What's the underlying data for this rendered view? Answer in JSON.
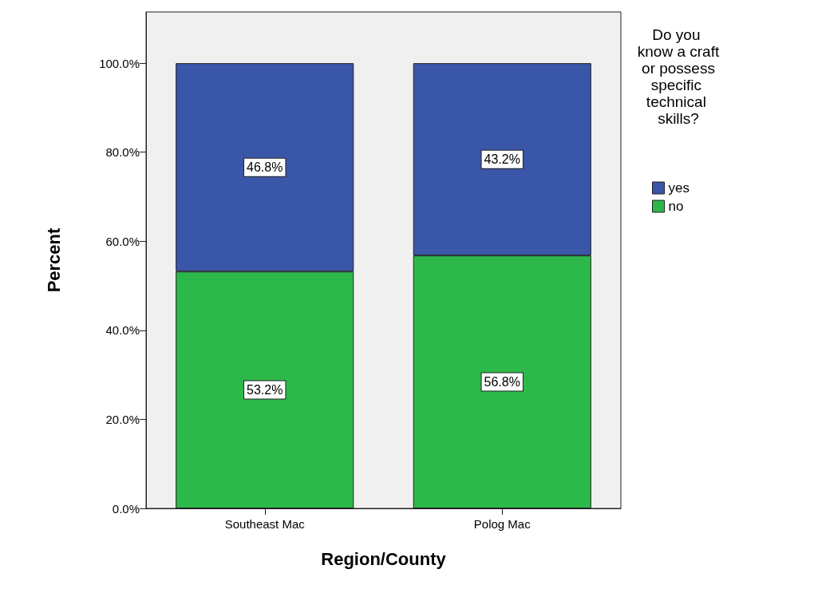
{
  "chart_data": {
    "type": "bar",
    "stacked": true,
    "xlabel": "Region/County",
    "ylabel": "Percent",
    "legend_title": "Do you know a craft or possess specific technical skills?",
    "legend": "right",
    "categories": [
      "Southeast Mac",
      "Polog Mac"
    ],
    "series": [
      {
        "name": "no",
        "color": "#2db84a",
        "values": [
          53.2,
          56.8
        ],
        "value_labels": [
          "53.2%",
          "56.8%"
        ]
      },
      {
        "name": "yes",
        "color": "#3a56a8",
        "values": [
          46.8,
          43.2
        ],
        "value_labels": [
          "46.8%",
          "43.2%"
        ]
      }
    ],
    "ylim": [
      0,
      111.5
    ],
    "yticks": [
      {
        "value": 0,
        "label": "0.0%"
      },
      {
        "value": 20,
        "label": "20.0%"
      },
      {
        "value": 40,
        "label": "40.0%"
      },
      {
        "value": 60,
        "label": "60.0%"
      },
      {
        "value": 80,
        "label": "80.0%"
      },
      {
        "value": 100,
        "label": "100.0%"
      }
    ],
    "grid": false
  }
}
